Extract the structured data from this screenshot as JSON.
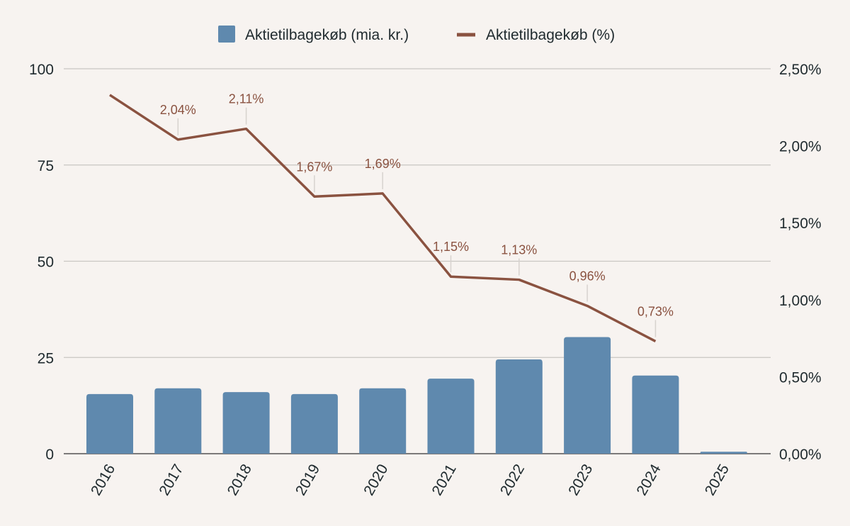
{
  "chart_data": {
    "type": "bar",
    "categories": [
      "2016",
      "2017",
      "2018",
      "2019",
      "2020",
      "2021",
      "2022",
      "2023",
      "2024",
      "2025"
    ],
    "series": [
      {
        "name": "Aktietilbagekøb (mia. kr.)",
        "type": "bar",
        "axis": "left",
        "color": "#5f89ae",
        "values": [
          15.5,
          17,
          16,
          15.5,
          17,
          19.5,
          24.5,
          30.3,
          20.3,
          0.5
        ]
      },
      {
        "name": "Aktietilbagekøb (%)",
        "type": "line",
        "axis": "right",
        "color": "#8a5240",
        "values": [
          2.33,
          2.04,
          2.11,
          1.67,
          1.69,
          1.15,
          1.13,
          0.96,
          0.73,
          null
        ],
        "labels": [
          "",
          "2,04%",
          "2,11%",
          "1,67%",
          "1,69%",
          "1,15%",
          "1,13%",
          "0,96%",
          "0,73%",
          ""
        ]
      }
    ],
    "y_left": {
      "ylim": [
        0,
        100
      ],
      "ticks": [
        0,
        25,
        50,
        75,
        100
      ],
      "tick_labels": [
        "0",
        "25",
        "50",
        "75",
        "100"
      ]
    },
    "y_right": {
      "ylim": [
        0,
        2.5
      ],
      "ticks": [
        0,
        0.5,
        1.0,
        1.5,
        2.0,
        2.5
      ],
      "tick_labels": [
        "0,00%",
        "0,50%",
        "1,00%",
        "1,50%",
        "2,00%",
        "2,50%"
      ]
    },
    "legend": {
      "position": "top-center"
    },
    "grid": true,
    "xlabel": "",
    "ylabel": "",
    "title": ""
  }
}
